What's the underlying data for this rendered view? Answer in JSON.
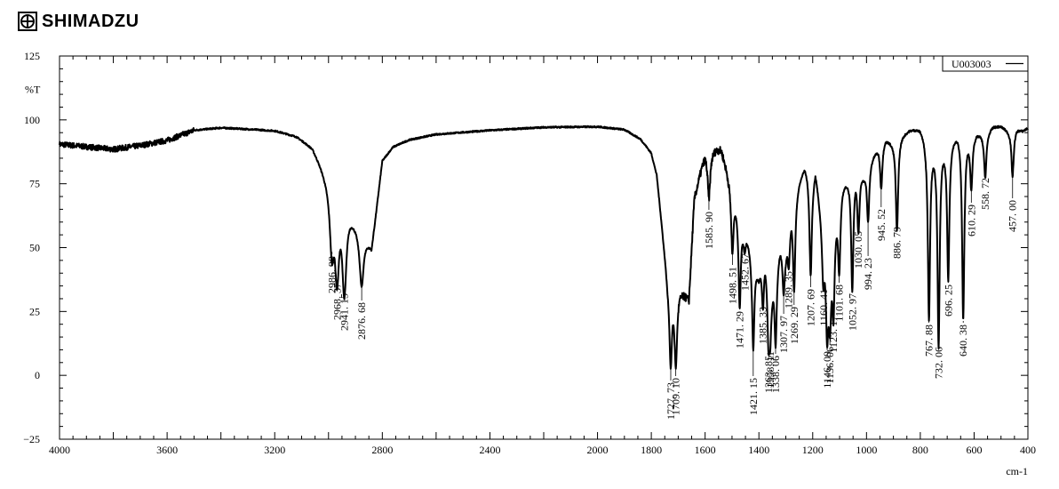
{
  "brand": {
    "name": "SHIMADZU",
    "logo_icon": "shimadzu-logo-icon"
  },
  "chart_data": {
    "type": "line",
    "title": "",
    "sample_id": "U003003",
    "xlabel": "cm-1",
    "ylabel": "%T",
    "xlim": [
      4000,
      400
    ],
    "ylim": [
      -25,
      125
    ],
    "x_reversed": true,
    "grid": false,
    "legend_position": "top-right",
    "x_ticks": [
      4000,
      3600,
      3200,
      2800,
      2400,
      2000,
      1600,
      1200,
      800,
      400
    ],
    "x_tick_labels": [
      "4000",
      "3600",
      "3200",
      "2800",
      "2400",
      "2000",
      "1600",
      "1200",
      "800",
      "400"
    ],
    "x_minor_labels": [
      {
        "x": 1800,
        "label": "1800"
      },
      {
        "x": 1400,
        "label": "1400"
      },
      {
        "x": 1000,
        "label": "1000"
      },
      {
        "x": 600,
        "label": "600"
      }
    ],
    "y_ticks": [
      -25,
      0,
      25,
      50,
      75,
      100,
      125
    ],
    "y_tick_labels": [
      "−25",
      "0",
      "25",
      "50",
      "75",
      "100",
      "125"
    ],
    "baseline_points": [
      [
        4000,
        90.5
      ],
      [
        3900,
        89.5
      ],
      [
        3800,
        88.5
      ],
      [
        3700,
        90
      ],
      [
        3600,
        92
      ],
      [
        3500,
        96
      ],
      [
        3400,
        97
      ],
      [
        3300,
        96.5
      ],
      [
        3200,
        96
      ],
      [
        3120,
        94
      ],
      [
        3060,
        90
      ],
      [
        3010,
        80
      ],
      [
        2840,
        50
      ],
      [
        2800,
        85
      ],
      [
        2760,
        90
      ],
      [
        2700,
        92.5
      ],
      [
        2600,
        94.5
      ],
      [
        2400,
        96
      ],
      [
        2200,
        97.2
      ],
      [
        2000,
        97.5
      ],
      [
        1900,
        96.5
      ],
      [
        1840,
        93
      ],
      [
        1800,
        88
      ],
      [
        1780,
        80
      ],
      [
        1760,
        60
      ],
      [
        1740,
        40
      ],
      [
        1660,
        30
      ],
      [
        1640,
        70
      ],
      [
        1600,
        88
      ],
      [
        1560,
        90
      ],
      [
        1540,
        90
      ],
      [
        1500,
        75
      ],
      [
        1440,
        55
      ],
      [
        1400,
        40
      ],
      [
        1380,
        55
      ],
      [
        1350,
        40
      ],
      [
        1320,
        55
      ],
      [
        1300,
        50
      ],
      [
        1280,
        70
      ],
      [
        1230,
        85
      ],
      [
        1200,
        80
      ],
      [
        1190,
        85
      ],
      [
        1160,
        60
      ],
      [
        1140,
        40
      ],
      [
        1120,
        65
      ],
      [
        1090,
        78
      ],
      [
        1060,
        80
      ],
      [
        1040,
        84
      ],
      [
        1010,
        80
      ],
      [
        985,
        86
      ],
      [
        960,
        90
      ],
      [
        930,
        94
      ],
      [
        900,
        92
      ],
      [
        870,
        95
      ],
      [
        840,
        97
      ],
      [
        800,
        98
      ],
      [
        780,
        95
      ],
      [
        750,
        92
      ],
      [
        720,
        93
      ],
      [
        700,
        93
      ],
      [
        680,
        95
      ],
      [
        660,
        97
      ],
      [
        620,
        95
      ],
      [
        590,
        96
      ],
      [
        560,
        95
      ],
      [
        530,
        98
      ],
      [
        500,
        98
      ],
      [
        470,
        96
      ],
      [
        440,
        97
      ],
      [
        420,
        96
      ],
      [
        400,
        97
      ]
    ],
    "peaks": [
      {
        "x": 2986.99,
        "y": 49,
        "label": "2986. 99"
      },
      {
        "x": 2968.37,
        "y": 38,
        "label": "2968. 37"
      },
      {
        "x": 2941.15,
        "y": 32,
        "label": "2941. 15"
      },
      {
        "x": 2876.68,
        "y": 35,
        "label": "2876. 68"
      },
      {
        "x": 1727.73,
        "y": 3,
        "label": "1727. 73"
      },
      {
        "x": 1709.1,
        "y": 3,
        "label": "1709. 10"
      },
      {
        "x": 1585.9,
        "y": 70,
        "label": "1585. 90"
      },
      {
        "x": 1498.51,
        "y": 49,
        "label": "1498. 51"
      },
      {
        "x": 1471.29,
        "y": 27,
        "label": "1471. 29"
      },
      {
        "x": 1452.67,
        "y": 51,
        "label": "1452. 67"
      },
      {
        "x": 1421.15,
        "y": 10,
        "label": "1421. 15"
      },
      {
        "x": 1385.33,
        "y": 28,
        "label": "1385. 33"
      },
      {
        "x": 1363.85,
        "y": 12,
        "label": "1363. 85"
      },
      {
        "x": 1358.11,
        "y": 14,
        "label": "1358. 11"
      },
      {
        "x": 1338.06,
        "y": 12,
        "label": "1338. 06"
      },
      {
        "x": 1307.97,
        "y": 33,
        "label": "1307. 97"
      },
      {
        "x": 1289.35,
        "y": 45,
        "label": "1289. 35"
      },
      {
        "x": 1269.29,
        "y": 34,
        "label": "1269. 29"
      },
      {
        "x": 1207.69,
        "y": 40,
        "label": "1207. 69"
      },
      {
        "x": 1160.41,
        "y": 38,
        "label": "1160. 41"
      },
      {
        "x": 1146.09,
        "y": 13,
        "label": "1146. 09"
      },
      {
        "x": 1136.06,
        "y": 18,
        "label": "1136. 06"
      },
      {
        "x": 1123.17,
        "y": 23,
        "label": "1123. 17"
      },
      {
        "x": 1101.68,
        "y": 42,
        "label": "1101. 68"
      },
      {
        "x": 1052.97,
        "y": 34,
        "label": "1052. 97"
      },
      {
        "x": 1030.05,
        "y": 58,
        "label": "1030. 05"
      },
      {
        "x": 994.23,
        "y": 61,
        "label": "994. 23"
      },
      {
        "x": 945.52,
        "y": 74,
        "label": "945. 52"
      },
      {
        "x": 886.79,
        "y": 57,
        "label": "886. 79"
      },
      {
        "x": 767.88,
        "y": 22,
        "label": "767. 88"
      },
      {
        "x": 732.06,
        "y": 11,
        "label": "732. 06"
      },
      {
        "x": 696.25,
        "y": 38,
        "label": "696. 25"
      },
      {
        "x": 640.38,
        "y": 22,
        "label": "640. 38"
      },
      {
        "x": 610.29,
        "y": 74,
        "label": "610. 29"
      },
      {
        "x": 558.72,
        "y": 78,
        "label": "558. 72"
      },
      {
        "x": 457.0,
        "y": 78,
        "label": "457. 00"
      }
    ]
  }
}
